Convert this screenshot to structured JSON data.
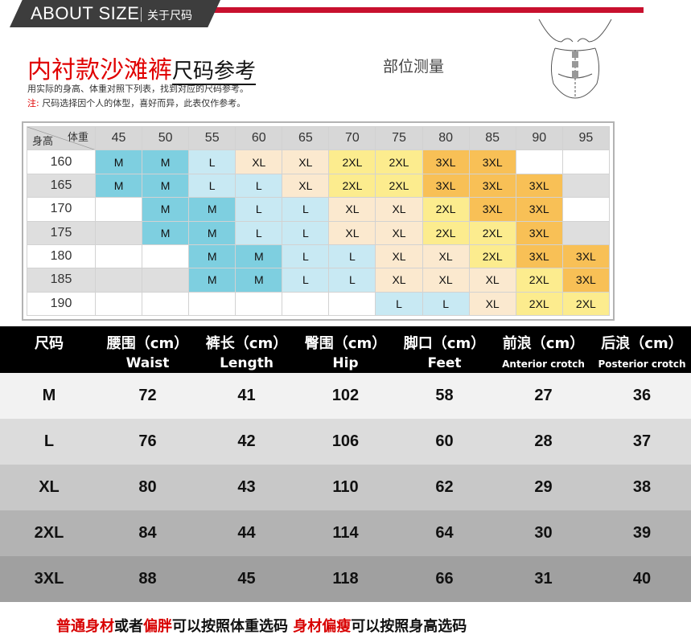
{
  "header": {
    "title": "ABOUT SIZE",
    "subtitle": "关于尺码"
  },
  "intro": {
    "title_red": "内衬款沙滩裤",
    "title_black": "尺码参考",
    "note_line1": "用实际的身高、体重对照下列表，找到对应的尺码参考。",
    "note_label": "注:",
    "note_line2": "尺码选择因个人的体型，喜好而异，此表仅作参考。",
    "measure_label": "部位测量",
    "figure_icon": "body-measurement-diagram-icon"
  },
  "size_grid": {
    "weight_label": "体重",
    "height_label": "身高",
    "weights": [
      "45",
      "50",
      "55",
      "60",
      "65",
      "70",
      "75",
      "80",
      "85",
      "90",
      "95"
    ],
    "rows": [
      {
        "height": "160",
        "cells": [
          "M",
          "M",
          "L",
          "XL",
          "XL",
          "2XL",
          "2XL",
          "3XL",
          "3XL",
          "",
          ""
        ]
      },
      {
        "height": "165",
        "cells": [
          "M",
          "M",
          "L",
          "L",
          "XL",
          "2XL",
          "2XL",
          "3XL",
          "3XL",
          "3XL",
          ""
        ]
      },
      {
        "height": "170",
        "cells": [
          "",
          "M",
          "M",
          "L",
          "L",
          "XL",
          "XL",
          "2XL",
          "3XL",
          "3XL",
          ""
        ]
      },
      {
        "height": "175",
        "cells": [
          "",
          "M",
          "M",
          "L",
          "L",
          "XL",
          "XL",
          "2XL",
          "2XL",
          "3XL",
          ""
        ]
      },
      {
        "height": "180",
        "cells": [
          "",
          "",
          "M",
          "M",
          "L",
          "L",
          "XL",
          "XL",
          "2XL",
          "3XL",
          "3XL"
        ]
      },
      {
        "height": "185",
        "cells": [
          "",
          "",
          "M",
          "M",
          "L",
          "L",
          "XL",
          "XL",
          "XL",
          "2XL",
          "3XL"
        ]
      },
      {
        "height": "190",
        "cells": [
          "",
          "",
          "",
          "",
          "",
          "",
          "L",
          "L",
          "XL",
          "2XL",
          "2XL"
        ]
      }
    ],
    "colors": {
      "M": "#7ecfe0",
      "L": "#c8e9f3",
      "XL": "#fbe9cf",
      "2XL": "#fcec8e",
      "3XL": "#f8c056"
    }
  },
  "measurements": {
    "headers": [
      {
        "cn": "尺码",
        "en": ""
      },
      {
        "cn": "腰围（cm）",
        "en": "Waist"
      },
      {
        "cn": "裤长（cm）",
        "en": "Length"
      },
      {
        "cn": "臀围（cm）",
        "en": "Hip"
      },
      {
        "cn": "脚口（cm）",
        "en": "Feet"
      },
      {
        "cn": "前浪（cm）",
        "en": "Anterior crotch"
      },
      {
        "cn": "后浪（cm）",
        "en": "Posterior crotch"
      }
    ],
    "rows": [
      [
        "M",
        "72",
        "41",
        "102",
        "58",
        "27",
        "36"
      ],
      [
        "L",
        "76",
        "42",
        "106",
        "60",
        "28",
        "37"
      ],
      [
        "XL",
        "80",
        "43",
        "110",
        "62",
        "29",
        "38"
      ],
      [
        "2XL",
        "84",
        "44",
        "114",
        "64",
        "30",
        "39"
      ],
      [
        "3XL",
        "88",
        "45",
        "118",
        "66",
        "31",
        "40"
      ]
    ],
    "row_colors": [
      "#f2f2f2",
      "#dcdcdc",
      "#c8c8c8",
      "#b3b3b3",
      "#a0a0a0"
    ]
  },
  "footer": {
    "part1": "普通身材",
    "part2": "或者",
    "part3": "偏胖",
    "part4": "可以按照体重选码 ",
    "part5": "身材偏瘦",
    "part6": "可以按照身高选码"
  }
}
